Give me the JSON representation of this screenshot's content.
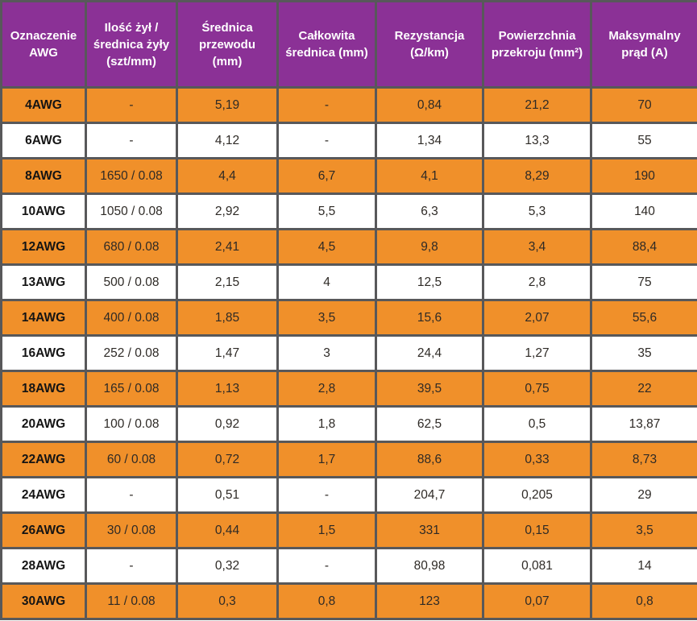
{
  "table": {
    "columns": [
      "Oznaczenie AWG",
      "Ilość żył / średnica żyły (szt/mm)",
      "Średnica przewodu (mm)",
      "Całkowita średnica (mm)",
      "Rezystancja (Ω/km)",
      "Powierzchnia przekroju (mm²)",
      "Maksymalny prąd (A)"
    ],
    "rows": [
      [
        "4AWG",
        "-",
        "5,19",
        "-",
        "0,84",
        "21,2",
        "70"
      ],
      [
        "6AWG",
        "-",
        "4,12",
        "-",
        "1,34",
        "13,3",
        "55"
      ],
      [
        "8AWG",
        "1650 / 0.08",
        "4,4",
        "6,7",
        "4,1",
        "8,29",
        "190"
      ],
      [
        "10AWG",
        "1050 / 0.08",
        "2,92",
        "5,5",
        "6,3",
        "5,3",
        "140"
      ],
      [
        "12AWG",
        "680 / 0.08",
        "2,41",
        "4,5",
        "9,8",
        "3,4",
        "88,4"
      ],
      [
        "13AWG",
        "500 / 0.08",
        "2,15",
        "4",
        "12,5",
        "2,8",
        "75"
      ],
      [
        "14AWG",
        "400 / 0.08",
        "1,85",
        "3,5",
        "15,6",
        "2,07",
        "55,6"
      ],
      [
        "16AWG",
        "252 / 0.08",
        "1,47",
        "3",
        "24,4",
        "1,27",
        "35"
      ],
      [
        "18AWG",
        "165 / 0.08",
        "1,13",
        "2,8",
        "39,5",
        "0,75",
        "22"
      ],
      [
        "20AWG",
        "100 / 0.08",
        "0,92",
        "1,8",
        "62,5",
        "0,5",
        "13,87"
      ],
      [
        "22AWG",
        "60 / 0.08",
        "0,72",
        "1,7",
        "88,6",
        "0,33",
        "8,73"
      ],
      [
        "24AWG",
        "-",
        "0,51",
        "-",
        "204,7",
        "0,205",
        "29"
      ],
      [
        "26AWG",
        "30 / 0.08",
        "0,44",
        "1,5",
        "331",
        "0,15",
        "3,5"
      ],
      [
        "28AWG",
        "-",
        "0,32",
        "-",
        "80,98",
        "0,081",
        "14"
      ],
      [
        "30AWG",
        "11 / 0.08",
        "0,3",
        "0,8",
        "123",
        "0,07",
        "0,8"
      ]
    ]
  },
  "colors": {
    "header_bg": "#8B3196",
    "header_text": "#FFFFFF",
    "row_orange": "#F0902A",
    "row_white": "#FFFFFF",
    "border": "#58585A",
    "cell_text": "#2E2A26"
  },
  "chart_data": {
    "type": "table",
    "title": "",
    "columns": [
      "Oznaczenie AWG",
      "Ilość żył / średnica żyły (szt/mm)",
      "Średnica przewodu (mm)",
      "Całkowita średnica (mm)",
      "Rezystancja (Ω/km)",
      "Powierzchnia przekroju (mm²)",
      "Maksymalny prąd (A)"
    ],
    "rows": [
      [
        "4AWG",
        "-",
        "5,19",
        "-",
        "0,84",
        "21,2",
        "70"
      ],
      [
        "6AWG",
        "-",
        "4,12",
        "-",
        "1,34",
        "13,3",
        "55"
      ],
      [
        "8AWG",
        "1650 / 0.08",
        "4,4",
        "6,7",
        "4,1",
        "8,29",
        "190"
      ],
      [
        "10AWG",
        "1050 / 0.08",
        "2,92",
        "5,5",
        "6,3",
        "5,3",
        "140"
      ],
      [
        "12AWG",
        "680 / 0.08",
        "2,41",
        "4,5",
        "9,8",
        "3,4",
        "88,4"
      ],
      [
        "13AWG",
        "500 / 0.08",
        "2,15",
        "4",
        "12,5",
        "2,8",
        "75"
      ],
      [
        "14AWG",
        "400 / 0.08",
        "1,85",
        "3,5",
        "15,6",
        "2,07",
        "55,6"
      ],
      [
        "16AWG",
        "252 / 0.08",
        "1,47",
        "3",
        "24,4",
        "1,27",
        "35"
      ],
      [
        "18AWG",
        "165 / 0.08",
        "1,13",
        "2,8",
        "39,5",
        "0,75",
        "22"
      ],
      [
        "20AWG",
        "100 / 0.08",
        "0,92",
        "1,8",
        "62,5",
        "0,5",
        "13,87"
      ],
      [
        "22AWG",
        "60 / 0.08",
        "0,72",
        "1,7",
        "88,6",
        "0,33",
        "8,73"
      ],
      [
        "24AWG",
        "-",
        "0,51",
        "-",
        "204,7",
        "0,205",
        "29"
      ],
      [
        "26AWG",
        "30 / 0.08",
        "0,44",
        "1,5",
        "331",
        "0,15",
        "3,5"
      ],
      [
        "28AWG",
        "-",
        "0,32",
        "-",
        "80,98",
        "0,081",
        "14"
      ],
      [
        "30AWG",
        "11 / 0.08",
        "0,3",
        "0,8",
        "123",
        "0,07",
        "0,8"
      ]
    ],
    "layout": {
      "header_style": "purple background, white bold text, centered",
      "row_striping": "odd rows orange, even rows white",
      "grid": true
    }
  }
}
